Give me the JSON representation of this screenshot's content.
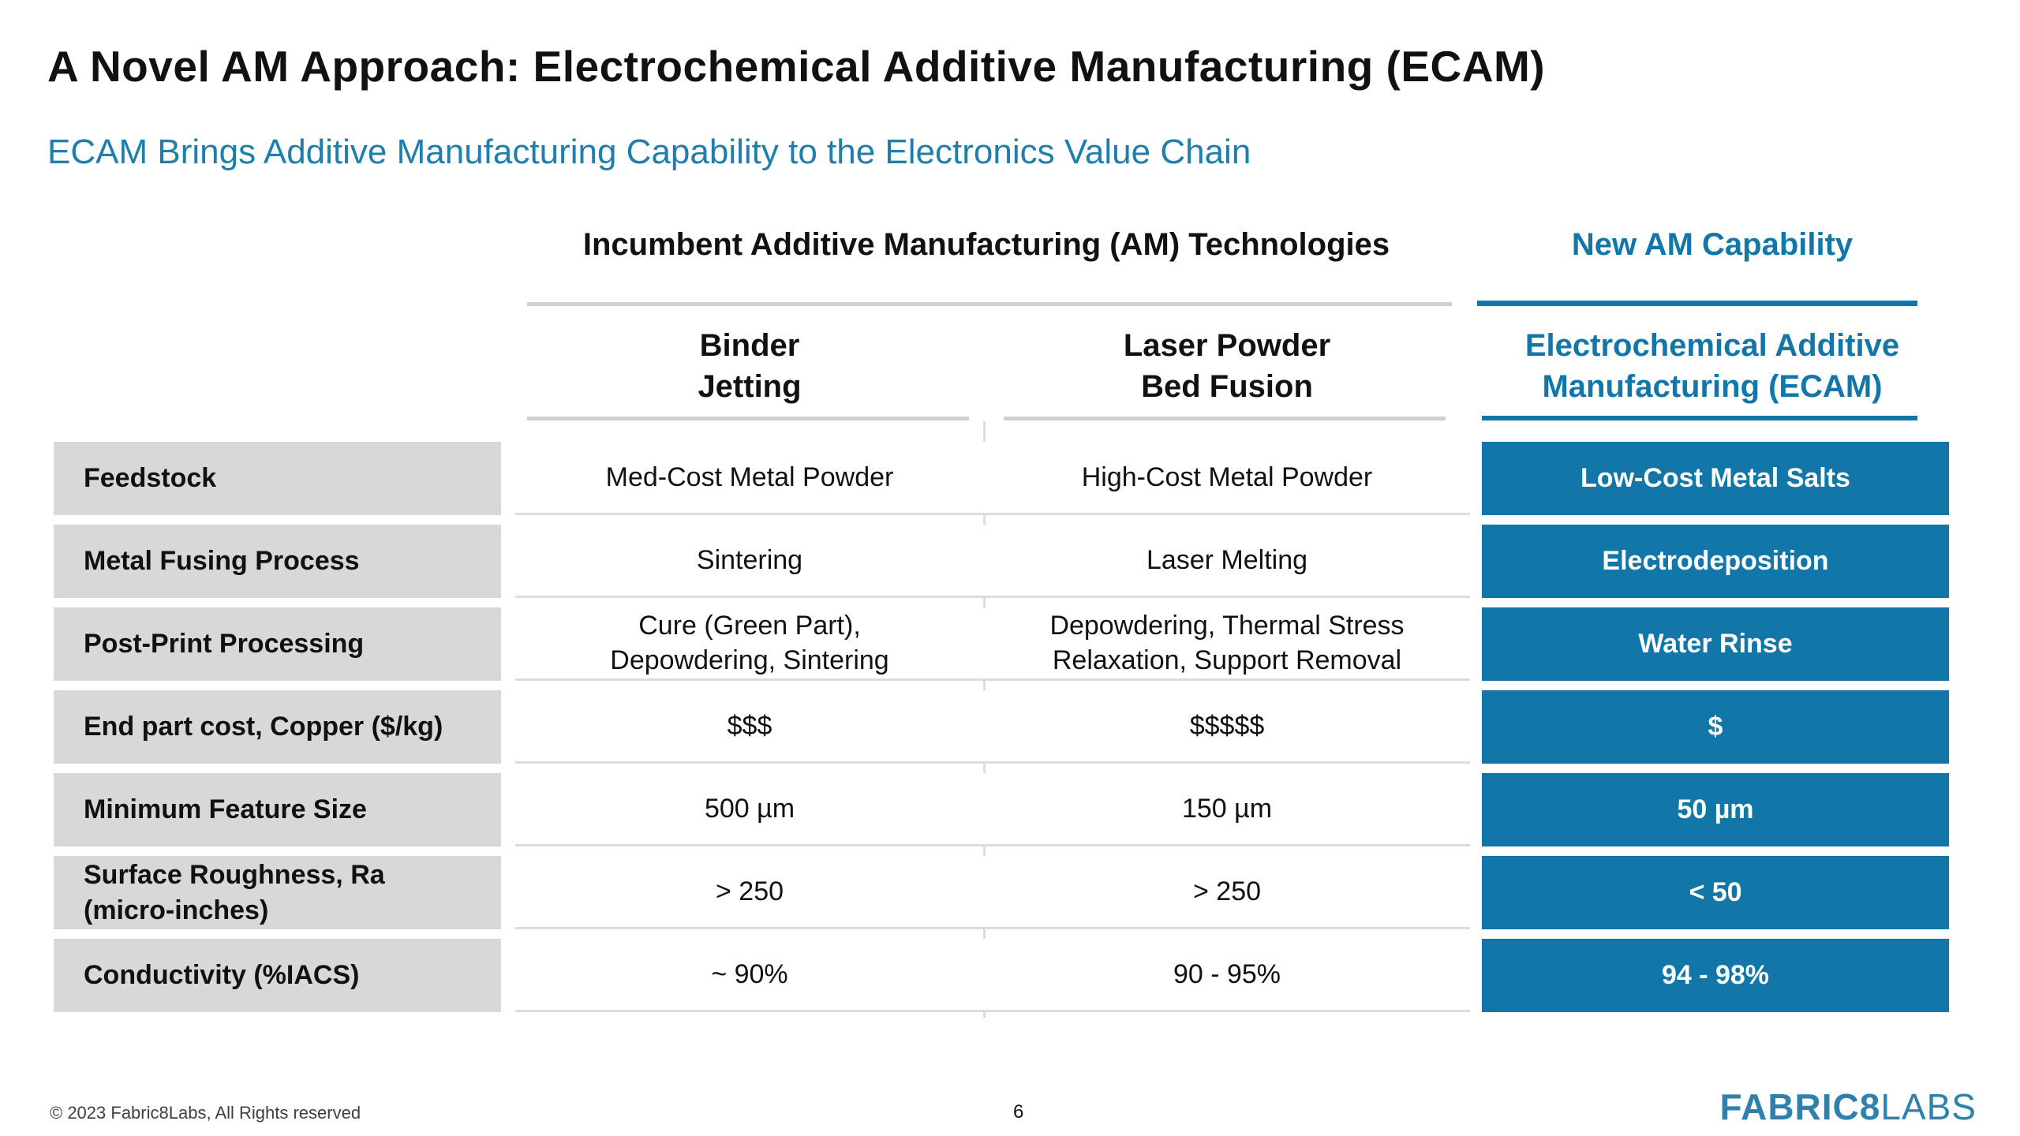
{
  "slide": {
    "title": "A Novel AM Approach: Electrochemical Additive Manufacturing (ECAM)",
    "subtitle": "ECAM Brings Additive Manufacturing Capability to the Electronics Value Chain"
  },
  "colors": {
    "accent_blue": "#1277A8",
    "subtitle_blue": "#1E7EAE",
    "label_gray": "#D8D8D8",
    "separator_gray": "#DCDCDC",
    "logo_blue": "#2F81AB"
  },
  "table": {
    "group_headers": {
      "incumbent": "Incumbent Additive Manufacturing (AM) Technologies",
      "new": "New AM Capability"
    },
    "column_headers": {
      "binder_jetting": "Binder\nJetting",
      "laser_pbf": "Laser Powder\nBed Fusion",
      "ecam": "Electrochemical Additive\nManufacturing (ECAM)"
    },
    "rows": [
      {
        "label": "Feedstock",
        "cells": [
          "Med-Cost Metal Powder",
          "High-Cost Metal Powder",
          "Low-Cost Metal Salts"
        ]
      },
      {
        "label": "Metal Fusing Process",
        "cells": [
          "Sintering",
          "Laser Melting",
          "Electrodeposition"
        ]
      },
      {
        "label": "Post-Print Processing",
        "cells": [
          "Cure (Green Part),\nDepowdering, Sintering",
          "Depowdering, Thermal Stress\nRelaxation, Support Removal",
          "Water Rinse"
        ]
      },
      {
        "label": "End part cost, Copper ($/kg)",
        "cells": [
          "$$$",
          "$$$$$",
          "$"
        ]
      },
      {
        "label": "Minimum Feature Size",
        "cells": [
          "500 µm",
          "150 µm",
          "50 µm"
        ]
      },
      {
        "label": "Surface Roughness, Ra\n(micro-inches)",
        "cells": [
          "> 250",
          "> 250",
          "< 50"
        ]
      },
      {
        "label": "Conductivity (%IACS)",
        "cells": [
          "~ 90%",
          "90 - 95%",
          "94 - 98%"
        ]
      }
    ]
  },
  "footer": {
    "copyright": "© 2023 Fabric8Labs, All Rights reserved",
    "page_number": "6",
    "logo_bold": "FABRIC8",
    "logo_light": "LABS"
  }
}
